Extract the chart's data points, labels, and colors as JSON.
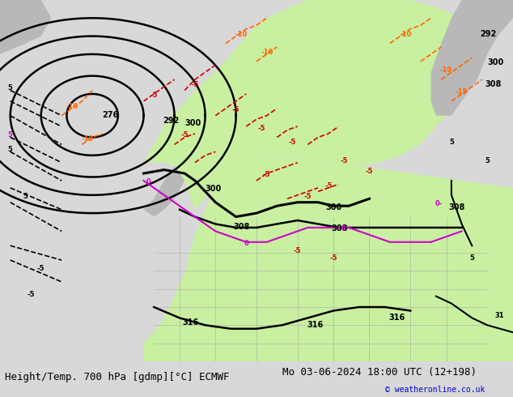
{
  "title_left": "Height/Temp. 700 hPa [gdmp][°C] ECMWF",
  "title_right": "Mo 03-06-2024 18:00 UTC (12+198)",
  "copyright": "© weatheronline.co.uk",
  "bg_color": "#d8d8d8",
  "map_bg_color": "#e8e8e8",
  "land_green_color": "#c8f0a0",
  "land_gray_color": "#b8b8b8",
  "sea_color": "#e8e8e8",
  "bottom_bar_color": "#e0e0e0",
  "height_contour_color": "#000000",
  "temp_neg_color": "#cc0000",
  "temp_pos_color": "#ff6600",
  "temp_zero_color": "#cc00cc",
  "font_size_label": 9,
  "font_size_title": 9,
  "fig_width": 6.34,
  "fig_height": 4.9
}
